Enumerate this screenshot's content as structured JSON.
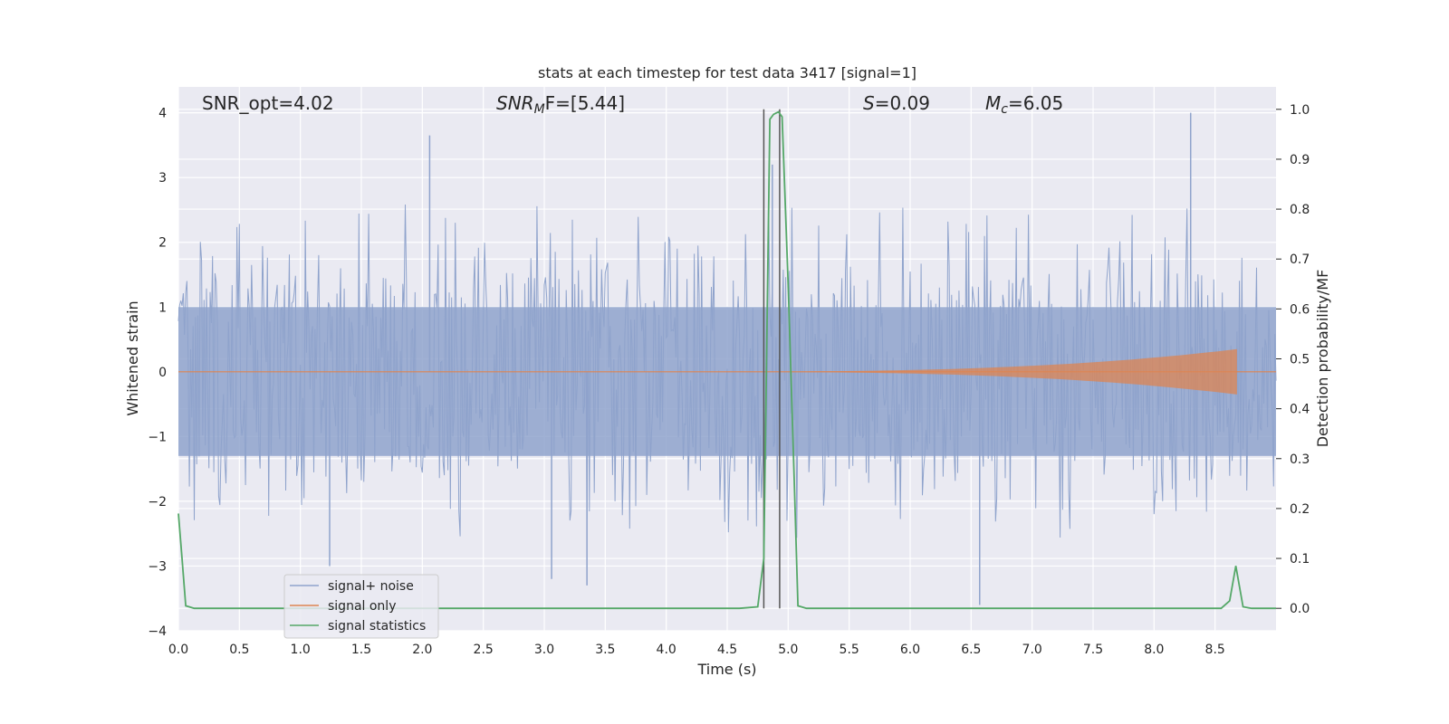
{
  "chart_data": {
    "type": "line",
    "title": "stats at each timestep for test data 3417 [signal=1]",
    "xlabel": "Time (s)",
    "ylabel": "Whitened strain",
    "y2label": "Detection probability/MF",
    "xlim": [
      0,
      9.0
    ],
    "ylim": [
      -4,
      4.4
    ],
    "y2lim": [
      -0.045,
      1.045
    ],
    "x_ticks": [
      "0.0",
      "0.5",
      "1.0",
      "1.5",
      "2.0",
      "2.5",
      "3.0",
      "3.5",
      "4.0",
      "4.5",
      "5.0",
      "5.5",
      "6.0",
      "6.5",
      "7.0",
      "7.5",
      "8.0",
      "8.5"
    ],
    "y_ticks": [
      "4",
      "3",
      "2",
      "1",
      "0",
      "−1",
      "−2",
      "−3",
      "−4"
    ],
    "y2_ticks": [
      "1.0",
      "0.9",
      "0.8",
      "0.7",
      "0.6",
      "0.5",
      "0.4",
      "0.3",
      "0.2",
      "0.1",
      "0.0"
    ],
    "grid": true,
    "legend_position": "lower-left",
    "annotations": {
      "snr_opt": "SNR_opt=4.02",
      "snr_mf_main": "SNR",
      "snr_mf_sub": "M",
      "snr_mf_rest": "F=[5.44]",
      "s_main": "S",
      "s_rest": "=0.09",
      "mc_main": "M",
      "mc_sub": "c",
      "mc_rest": "=6.05"
    },
    "vertical_lines_x": [
      4.8,
      4.93
    ],
    "series": [
      {
        "name": "signal+ noise",
        "color": "#8fa3cc",
        "axis": "left",
        "description_values": "noise envelope approx ±1.8 with spikes up to 4.0",
        "spikes": [
          {
            "x": 2.06,
            "y": 3.65
          },
          {
            "x": 8.3,
            "y": 4.0
          },
          {
            "x": 4.87,
            "y": 3.2
          },
          {
            "x": 6.57,
            "y": -3.6
          },
          {
            "x": 1.24,
            "y": -3.0
          },
          {
            "x": 3.06,
            "y": -3.2
          },
          {
            "x": 3.35,
            "y": -3.3
          }
        ]
      },
      {
        "name": "signal only",
        "color": "#dd8452",
        "axis": "left",
        "chirp": {
          "start_x": 4.0,
          "end_x": 8.68,
          "end_amplitude": 0.35
        }
      },
      {
        "name": "signal statistics",
        "color": "#55a868",
        "axis": "right",
        "x": [
          0.0,
          0.03,
          0.06,
          0.13,
          0.2,
          1.0,
          2.0,
          3.0,
          4.0,
          4.6,
          4.75,
          4.8,
          4.85,
          4.88,
          4.92,
          4.95,
          5.0,
          5.05,
          5.08,
          5.15,
          6.0,
          7.0,
          8.0,
          8.55,
          8.62,
          8.67,
          8.73,
          8.8,
          9.0
        ],
        "y": [
          0.19,
          0.1,
          0.005,
          0.0,
          0.0,
          0.0,
          0.0,
          0.0,
          0.0,
          0.0,
          0.003,
          0.1,
          0.98,
          0.99,
          0.995,
          0.985,
          0.65,
          0.25,
          0.005,
          0.0,
          0.0,
          0.0,
          0.0,
          0.0,
          0.015,
          0.085,
          0.003,
          0.0,
          0.0
        ]
      }
    ],
    "colors": {
      "background": "#eaeaf2",
      "grid": "#ffffff",
      "vline": "#555555"
    }
  }
}
